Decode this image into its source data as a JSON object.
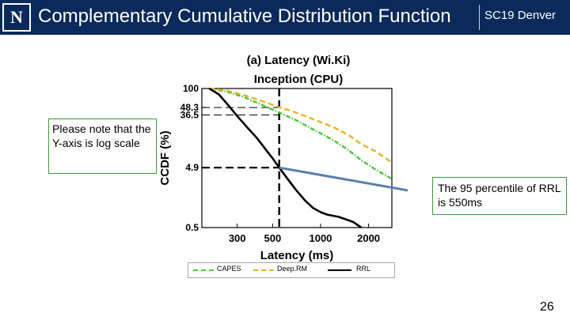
{
  "header": {
    "logo_text": "N",
    "title": "Complementary Cumulative Distribution Function",
    "conference": "SC19 Denver"
  },
  "notes": {
    "left": "Please note that the Y-axis is log scale",
    "right": "The 95 percentile of RRL is 550ms"
  },
  "page_number": "26",
  "colors": {
    "header_bg": "#0b2a5b",
    "capes": "#4cc43a",
    "deeprm": "#e8b422",
    "rrl": "#000000",
    "note_border": "#3a9a3a",
    "arrow": "#5b7fad"
  },
  "chart_data": {
    "type": "line",
    "title": "(a) Latency (Wi.Ki)",
    "subtitle": "Inception (CPU)",
    "xlabel": "Latency (ms)",
    "ylabel": "CCDF (%)",
    "x_ticks": [
      300,
      500,
      1000,
      2000
    ],
    "x_tick_labels": [
      "300",
      "500",
      "1000",
      "2000"
    ],
    "y_ticks": [
      100,
      48.3,
      36.5,
      4.9,
      0.5
    ],
    "y_tick_labels": [
      "100",
      "48.3",
      "36.5",
      "4.9",
      "0.5"
    ],
    "xlim": [
      180,
      2800
    ],
    "ylim": [
      0.5,
      100
    ],
    "x_scale": "log",
    "y_scale": "log",
    "grid": false,
    "legend_position": "bottom",
    "reference_x": 550,
    "series": [
      {
        "name": "CAPES",
        "style": "dash-dot",
        "color": "#4cc43a",
        "x": [
          200,
          260,
          330,
          420,
          550,
          700,
          900,
          1200,
          1500,
          1800,
          2200,
          2800
        ],
        "y": [
          100,
          88,
          72,
          55,
          40,
          30,
          21,
          14,
          9.5,
          6.5,
          4.6,
          3.2
        ]
      },
      {
        "name": "Deep.RM",
        "style": "dashed",
        "color": "#e8b422",
        "x": [
          200,
          260,
          330,
          420,
          550,
          700,
          900,
          1200,
          1500,
          1800,
          2200,
          2800
        ],
        "y": [
          100,
          92,
          78,
          63,
          49,
          40,
          31,
          23,
          17,
          12,
          9.2,
          6
        ]
      },
      {
        "name": "RRL",
        "style": "solid",
        "color": "#000000",
        "x": [
          200,
          230,
          260,
          300,
          350,
          400,
          450,
          500,
          550,
          620,
          700,
          800,
          900,
          1000,
          1100,
          1300,
          1600,
          1800
        ],
        "y": [
          100,
          80,
          55,
          35,
          22,
          15,
          10,
          7,
          4.9,
          3.2,
          2.1,
          1.4,
          1.05,
          0.9,
          0.82,
          0.75,
          0.62,
          0.5
        ]
      }
    ]
  }
}
